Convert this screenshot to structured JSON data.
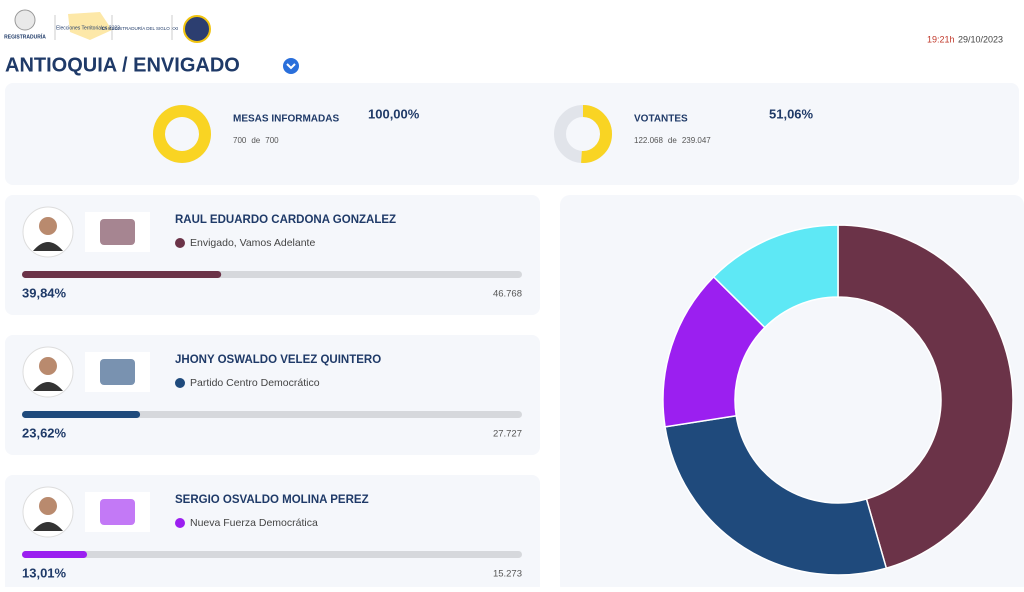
{
  "header": {
    "logo_texts": [
      "REGISTRADURÍA",
      "Elecciones Territoriales 2023",
      "LA REGISTRADURÍA DEL SIGLO XXI"
    ],
    "time": "19:21h",
    "date": "29/10/2023",
    "location": "ANTIOQUIA / ENVIGADO"
  },
  "summary": [
    {
      "title": "MESAS INFORMADAS",
      "percent": {
        "value": 100,
        "label": "100,00%"
      },
      "reported": {
        "value": 700,
        "label": "700"
      },
      "connector": "de",
      "total": {
        "value": 700,
        "label": "700"
      },
      "gauge_color": "#f9d423"
    },
    {
      "title": "VOTANTES",
      "percent": {
        "value": 51.06,
        "label": "51,06%"
      },
      "reported": {
        "value": 122068,
        "label": "122.068"
      },
      "connector": "de",
      "total": {
        "value": 239047,
        "label": "239.047"
      },
      "gauge_color": "#f9d423"
    }
  ],
  "candidates": [
    {
      "name": "RAUL EDUARDO CARDONA GONZALEZ",
      "party": "Envigado, Vamos Adelante",
      "color": "#6b3348",
      "percent": {
        "value": 39.84,
        "label": "39,84%"
      },
      "votes": {
        "value": 46768,
        "label": "46.768"
      }
    },
    {
      "name": "JHONY OSWALDO VELEZ QUINTERO",
      "party": "Partido Centro Democrático",
      "color": "#1f4a7c",
      "percent": {
        "value": 23.62,
        "label": "23,62%"
      },
      "votes": {
        "value": 27727,
        "label": "27.727"
      }
    },
    {
      "name": "SERGIO OSVALDO MOLINA PEREZ",
      "party": "Nueva Fuerza Democrática",
      "color": "#9b1ff0",
      "percent": {
        "value": 13.01,
        "label": "13,01%"
      },
      "votes": {
        "value": 15273,
        "label": "15.273"
      }
    }
  ],
  "donut": {
    "other_value": 11,
    "other_color": "#5ee8f5"
  }
}
